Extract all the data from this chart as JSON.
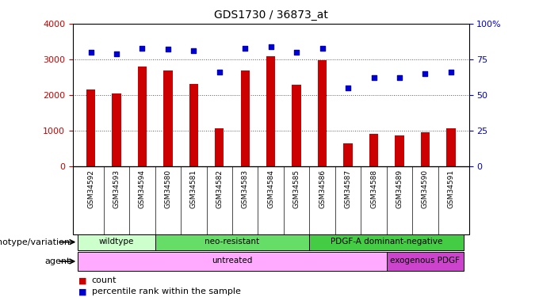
{
  "title": "GDS1730 / 36873_at",
  "samples": [
    "GSM34592",
    "GSM34593",
    "GSM34594",
    "GSM34580",
    "GSM34581",
    "GSM34582",
    "GSM34583",
    "GSM34584",
    "GSM34585",
    "GSM34586",
    "GSM34587",
    "GSM34588",
    "GSM34589",
    "GSM34590",
    "GSM34591"
  ],
  "counts": [
    2150,
    2050,
    2800,
    2680,
    2320,
    1060,
    2680,
    3100,
    2280,
    2980,
    650,
    920,
    870,
    960,
    1060
  ],
  "percentile": [
    80,
    79,
    83,
    82,
    81,
    66,
    83,
    84,
    80,
    83,
    55,
    62,
    62,
    65,
    66
  ],
  "bar_color": "#cc0000",
  "dot_color": "#0000cc",
  "ylim_left": [
    0,
    4000
  ],
  "ylim_right": [
    0,
    100
  ],
  "yticks_left": [
    0,
    1000,
    2000,
    3000,
    4000
  ],
  "ytick_labels_left": [
    "0",
    "1000",
    "2000",
    "3000",
    "4000"
  ],
  "yticks_right": [
    0,
    25,
    50,
    75,
    100
  ],
  "ytick_labels_right": [
    "0",
    "25",
    "50",
    "75",
    "100%"
  ],
  "genotype_groups": [
    {
      "label": "wildtype",
      "start": 0,
      "end": 3,
      "color": "#ccffcc"
    },
    {
      "label": "neo-resistant",
      "start": 3,
      "end": 9,
      "color": "#66dd66"
    },
    {
      "label": "PDGF-A dominant-negative",
      "start": 9,
      "end": 15,
      "color": "#44cc44"
    }
  ],
  "agent_groups": [
    {
      "label": "untreated",
      "start": 0,
      "end": 12,
      "color": "#ffaaff"
    },
    {
      "label": "exogenous PDGF",
      "start": 12,
      "end": 15,
      "color": "#cc44cc"
    }
  ],
  "genotype_label": "genotype/variation",
  "agent_label": "agent",
  "legend_count_label": "count",
  "legend_pct_label": "percentile rank within the sample",
  "grid_color": "#555555",
  "background_color": "#ffffff",
  "xlabel_bg": "#cccccc",
  "bar_width": 0.5
}
